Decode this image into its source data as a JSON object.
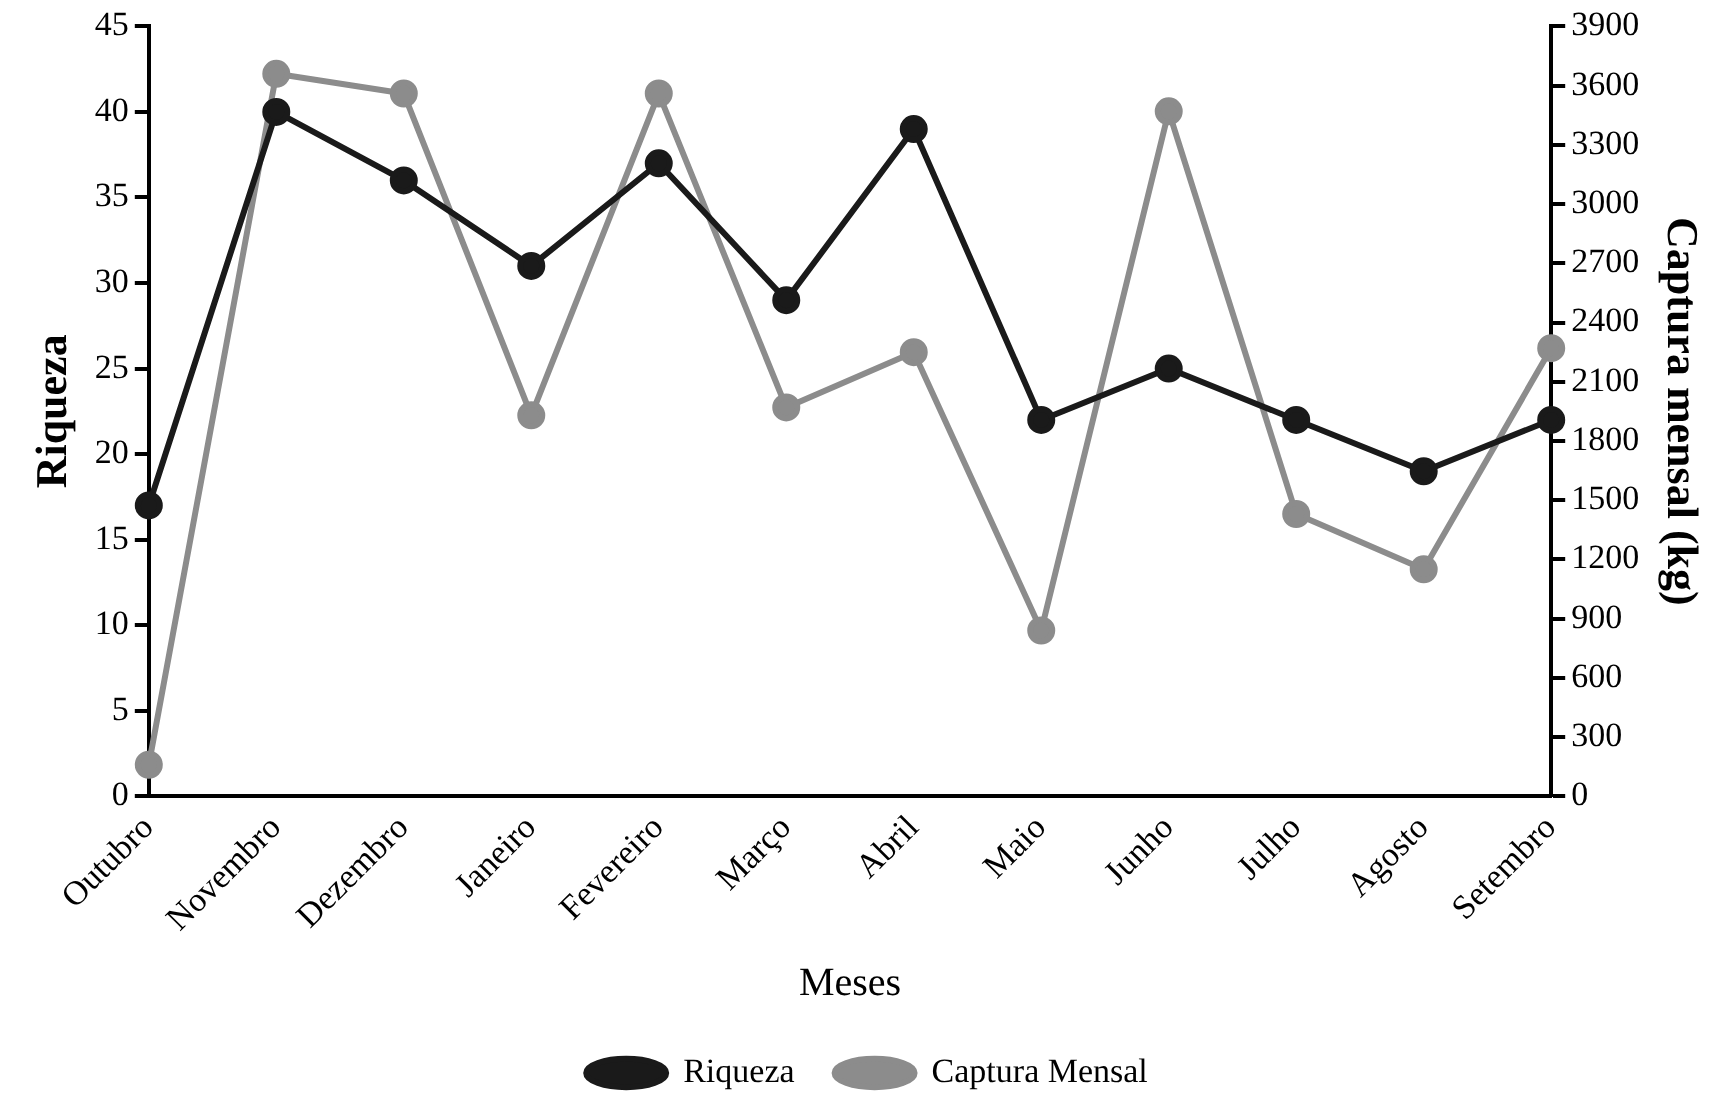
{
  "chart_data": {
    "type": "line",
    "xlabel": "Meses",
    "ylabel": "Riqueza",
    "y2label": "Captura mensal (kg)",
    "categories": [
      "Outubro",
      "Novembro",
      "Dezembro",
      "Janeiro",
      "Fevereiro",
      "Março",
      "Abril",
      "Maio",
      "Junho",
      "Julho",
      "Agosto",
      "Setembro"
    ],
    "series": [
      {
        "name": "Riqueza",
        "color": "#1a1a1a",
        "values": [
          17,
          40,
          36,
          31,
          37,
          29,
          39,
          22,
          25,
          22,
          19,
          22
        ]
      },
      {
        "name": "Captura Mensal",
        "color": "#8c8c8c",
        "axis": "y2",
        "values": [
          160,
          3660,
          3560,
          1930,
          3560,
          1970,
          2250,
          840,
          3470,
          1430,
          1150,
          2270
        ]
      }
    ],
    "ylim": [
      0,
      45
    ],
    "yticks": [
      0,
      5,
      10,
      15,
      20,
      25,
      30,
      35,
      40,
      45
    ],
    "y2lim": [
      0,
      3900
    ],
    "y2ticks": [
      0,
      300,
      600,
      900,
      1200,
      1500,
      1800,
      2100,
      2400,
      2700,
      3000,
      3300,
      3600,
      3900
    ],
    "grid": false,
    "legend": "bottom",
    "marker": "circle",
    "line_style": "solid"
  }
}
